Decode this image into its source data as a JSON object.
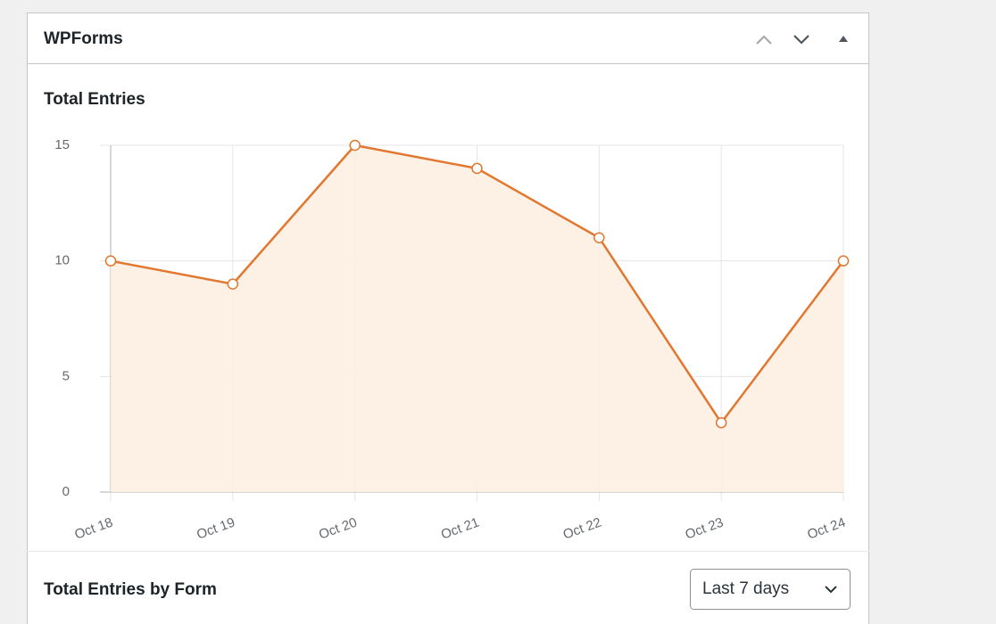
{
  "widget": {
    "title": "WPForms"
  },
  "chart_data": {
    "type": "area",
    "title": "Total Entries",
    "categories": [
      "Oct 18",
      "Oct 19",
      "Oct 20",
      "Oct 21",
      "Oct 22",
      "Oct 23",
      "Oct 24"
    ],
    "values": [
      10,
      9,
      15,
      14,
      11,
      3,
      10
    ],
    "color": "#e27730",
    "fill": "#fdeee2",
    "ylim": [
      0,
      15
    ],
    "yticks": [
      0,
      5,
      10,
      15
    ],
    "grid": true
  },
  "footer": {
    "title": "Total Entries by Form",
    "select": "Last 7 days"
  }
}
